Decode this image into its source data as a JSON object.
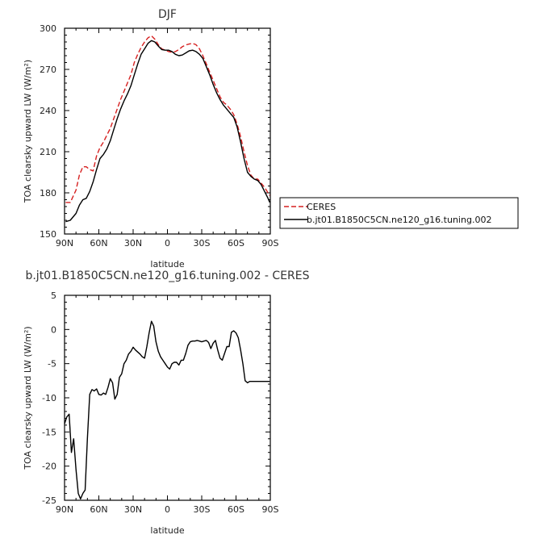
{
  "chart_data": [
    {
      "type": "line",
      "title": "DJF",
      "xlabel": "latitude",
      "ylabel": "TOA clearsky upward LW (W/m²)",
      "xlim": [
        90,
        -90
      ],
      "ylim": [
        150,
        300
      ],
      "xticks": [
        90,
        60,
        30,
        0,
        -30,
        -60,
        -90
      ],
      "xtick_labels": [
        "90N",
        "60N",
        "30N",
        "0",
        "30S",
        "60S",
        "90S"
      ],
      "yticks": [
        150,
        180,
        210,
        240,
        270,
        300
      ],
      "ytick_labels": [
        "150",
        "180",
        "210",
        "240",
        "270",
        "300"
      ],
      "legend_placement": "outside-right",
      "series": [
        {
          "name": "CERES",
          "color": "#d62020",
          "style": "dashed",
          "x": [
            89,
            85,
            80,
            77,
            74,
            71,
            68,
            65,
            62,
            59,
            56,
            53,
            50,
            47,
            44,
            41,
            38,
            35,
            32,
            29,
            26,
            23,
            20,
            17,
            14,
            11,
            8,
            5,
            2,
            -1,
            -4,
            -7,
            -10,
            -13,
            -16,
            -19,
            -22,
            -25,
            -28,
            -31,
            -34,
            -37,
            -40,
            -43,
            -46,
            -49,
            -52,
            -55,
            -58,
            -61,
            -64,
            -67,
            -70,
            -73,
            -76,
            -79,
            -82,
            -85,
            -88,
            -89.5
          ],
          "y": [
            173,
            173,
            182,
            193,
            199,
            199,
            197,
            196,
            207,
            213,
            217,
            222,
            227,
            234,
            241,
            248,
            254,
            260,
            266,
            275,
            281,
            286,
            290,
            293,
            294.5,
            292,
            288,
            285,
            284,
            283,
            282.5,
            283,
            284.5,
            286.5,
            287.8,
            288.5,
            289,
            288,
            285,
            280,
            274,
            268,
            262,
            256,
            250,
            246,
            244,
            241,
            237,
            230,
            221,
            210,
            200,
            193,
            190,
            190,
            187,
            184,
            180,
            178
          ]
        },
        {
          "name": "b.jt01.B1850C5CN.ne120_g16.tuning.002",
          "color": "#000000",
          "style": "solid",
          "x": [
            89,
            85,
            80,
            77,
            74,
            71,
            68,
            65,
            62,
            59,
            56,
            53,
            50,
            47,
            44,
            41,
            38,
            35,
            32,
            29,
            26,
            23,
            20,
            17,
            14,
            11,
            8,
            5,
            2,
            -1,
            -4,
            -7,
            -10,
            -13,
            -16,
            -19,
            -22,
            -25,
            -28,
            -31,
            -34,
            -37,
            -40,
            -43,
            -46,
            -49,
            -52,
            -55,
            -58,
            -61,
            -64,
            -67,
            -70,
            -73,
            -76,
            -79,
            -82,
            -85,
            -88,
            -89.5
          ],
          "y": [
            159,
            160,
            165,
            171,
            175,
            176,
            181,
            188,
            197,
            205,
            208,
            212,
            218,
            226,
            234,
            241,
            247,
            252,
            258,
            266,
            274,
            281,
            285,
            289,
            291,
            290,
            287,
            284.5,
            284,
            284,
            283,
            281,
            280,
            280.5,
            282,
            283.5,
            284,
            283,
            281,
            278,
            272,
            266,
            259,
            253,
            248,
            244,
            241,
            238,
            235,
            228,
            217,
            205,
            195,
            192,
            190,
            189,
            186,
            181,
            176,
            173
          ]
        }
      ]
    },
    {
      "type": "line",
      "title": "b.jt01.B1850C5CN.ne120_g16.tuning.002 - CERES",
      "xlabel": "latitude",
      "ylabel": "TOA clearsky upward LW (W/m²)",
      "xlim": [
        90,
        -90
      ],
      "ylim": [
        -25,
        5
      ],
      "xticks": [
        90,
        60,
        30,
        0,
        -30,
        -60,
        -90
      ],
      "xtick_labels": [
        "90N",
        "60N",
        "30N",
        "0",
        "30S",
        "60S",
        "90S"
      ],
      "yticks": [
        -25,
        -20,
        -15,
        -10,
        -5,
        0,
        5
      ],
      "ytick_labels": [
        "-25",
        "-20",
        "-15",
        "-10",
        "-5",
        "0",
        "5"
      ],
      "series": [
        {
          "color": "#000000",
          "style": "solid",
          "x": [
            90,
            88,
            86,
            84,
            82,
            80,
            78,
            76,
            74,
            72,
            70,
            68,
            66,
            64,
            62,
            60,
            58,
            56,
            54,
            52,
            50,
            48,
            46,
            44,
            42,
            40,
            38,
            36,
            34,
            32,
            30,
            28,
            26,
            24,
            22,
            20,
            18,
            16,
            14,
            12,
            10,
            8,
            6,
            4,
            2,
            0,
            -2,
            -4,
            -6,
            -8,
            -10,
            -12,
            -14,
            -16,
            -18,
            -20,
            -22,
            -24,
            -26,
            -28,
            -30,
            -32,
            -34,
            -36,
            -38,
            -40,
            -42,
            -44,
            -46,
            -48,
            -50,
            -52,
            -54,
            -56,
            -58,
            -60,
            -62,
            -64,
            -66,
            -68,
            -70,
            -72,
            -74,
            -76,
            -78,
            -80,
            -82,
            -84,
            -86,
            -88,
            -89.5
          ],
          "y": [
            -13.8,
            -12.8,
            -12.4,
            -18,
            -16,
            -20.5,
            -24,
            -24.8,
            -24,
            -23.5,
            -16,
            -9.5,
            -8.8,
            -9,
            -8.7,
            -9.5,
            -9.6,
            -9.3,
            -9.5,
            -8.5,
            -7.2,
            -7.8,
            -10.2,
            -9.5,
            -7,
            -6.5,
            -5,
            -4.5,
            -3.6,
            -3.2,
            -2.6,
            -3,
            -3.3,
            -3.6,
            -4,
            -4.2,
            -2.5,
            -0.5,
            1.2,
            0.5,
            -1.8,
            -3.2,
            -4,
            -4.5,
            -5,
            -5.5,
            -5.8,
            -5,
            -4.8,
            -4.8,
            -5.2,
            -4.5,
            -4.5,
            -3.5,
            -2.3,
            -1.8,
            -1.7,
            -1.7,
            -1.6,
            -1.7,
            -1.8,
            -1.7,
            -1.6,
            -1.9,
            -2.8,
            -2,
            -1.6,
            -3,
            -4.2,
            -4.5,
            -3.5,
            -2.5,
            -2.5,
            -0.4,
            -0.2,
            -0.5,
            -1.2,
            -3,
            -5,
            -7.5,
            -7.8,
            -7.6,
            -7.6,
            -7.6,
            -7.6,
            -7.6,
            -7.6,
            -7.6,
            -7.6,
            -7.6,
            -7.6
          ]
        }
      ]
    }
  ]
}
